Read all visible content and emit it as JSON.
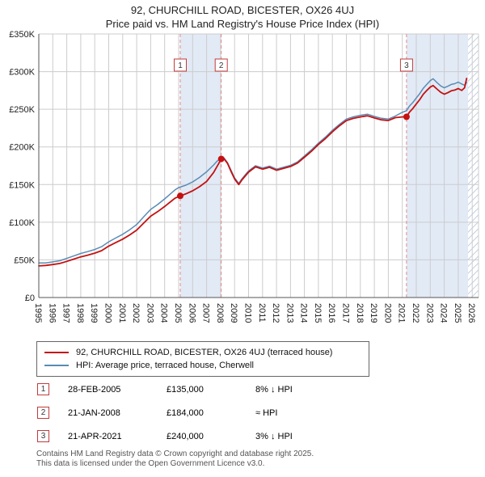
{
  "chart_data": {
    "type": "line",
    "title": "92, CHURCHILL ROAD, BICESTER, OX26 4UJ",
    "subtitle": "Price paid vs. HM Land Registry's House Price Index (HPI)",
    "xlim": [
      1995,
      2026.45
    ],
    "ylim": [
      0,
      350000
    ],
    "grid": true,
    "legend_position": "bottom",
    "x_ticks": [
      1995,
      1996,
      1997,
      1998,
      1999,
      2000,
      2001,
      2002,
      2003,
      2004,
      2005,
      2006,
      2007,
      2008,
      2009,
      2010,
      2011,
      2012,
      2013,
      2014,
      2015,
      2016,
      2017,
      2018,
      2019,
      2020,
      2021,
      2022,
      2023,
      2024,
      2025,
      2026
    ],
    "y_ticks": [
      {
        "value": 0,
        "label": "£0"
      },
      {
        "value": 50000,
        "label": "£50K"
      },
      {
        "value": 100000,
        "label": "£100K"
      },
      {
        "value": 150000,
        "label": "£150K"
      },
      {
        "value": 200000,
        "label": "£200K"
      },
      {
        "value": 250000,
        "label": "£250K"
      },
      {
        "value": 300000,
        "label": "£300K"
      },
      {
        "value": 350000,
        "label": "£350K"
      }
    ],
    "series": [
      {
        "name": "92, CHURCHILL ROAD, BICESTER, OX26 4UJ (terraced house)",
        "color": "#c41111",
        "points": [
          [
            1995,
            42000
          ],
          [
            1995.5,
            42600
          ],
          [
            1996,
            43800
          ],
          [
            1996.5,
            45200
          ],
          [
            1997,
            48000
          ],
          [
            1997.5,
            51000
          ],
          [
            1998,
            54000
          ],
          [
            1998.5,
            56300
          ],
          [
            1999,
            58900
          ],
          [
            1999.5,
            62300
          ],
          [
            2000,
            68300
          ],
          [
            2000.5,
            72900
          ],
          [
            2001,
            77500
          ],
          [
            2001.5,
            83100
          ],
          [
            2002,
            89500
          ],
          [
            2002.5,
            98800
          ],
          [
            2003,
            108000
          ],
          [
            2003.5,
            114000
          ],
          [
            2004,
            120900
          ],
          [
            2004.25,
            124600
          ],
          [
            2004.5,
            128300
          ],
          [
            2004.75,
            132000
          ],
          [
            2005.12,
            135000
          ],
          [
            2005.5,
            137500
          ],
          [
            2006,
            141700
          ],
          [
            2006.5,
            147200
          ],
          [
            2007,
            154200
          ],
          [
            2007.5,
            166000
          ],
          [
            2007.75,
            174000
          ],
          [
            2008.05,
            184000
          ],
          [
            2008.2,
            185500
          ],
          [
            2008.5,
            178000
          ],
          [
            2008.75,
            167500
          ],
          [
            2009,
            157500
          ],
          [
            2009.3,
            150000
          ],
          [
            2009.5,
            155500
          ],
          [
            2009.75,
            161000
          ],
          [
            2010,
            166500
          ],
          [
            2010.5,
            173500
          ],
          [
            2011,
            170500
          ],
          [
            2011.5,
            173000
          ],
          [
            2012,
            169000
          ],
          [
            2012.5,
            171500
          ],
          [
            2013,
            174000
          ],
          [
            2013.5,
            178500
          ],
          [
            2014,
            186300
          ],
          [
            2014.5,
            194200
          ],
          [
            2015,
            203200
          ],
          [
            2015.5,
            211100
          ],
          [
            2016,
            220000
          ],
          [
            2016.5,
            228000
          ],
          [
            2017,
            234900
          ],
          [
            2017.5,
            237900
          ],
          [
            2018,
            239900
          ],
          [
            2018.5,
            241400
          ],
          [
            2019,
            238400
          ],
          [
            2019.5,
            236000
          ],
          [
            2020,
            235000
          ],
          [
            2020.5,
            238900
          ],
          [
            2021,
            239800
          ],
          [
            2021.3,
            240000
          ],
          [
            2021.5,
            246000
          ],
          [
            2021.75,
            251000
          ],
          [
            2022,
            257000
          ],
          [
            2022.25,
            263000
          ],
          [
            2022.5,
            270000
          ],
          [
            2022.75,
            275000
          ],
          [
            2023,
            279500
          ],
          [
            2023.2,
            281500
          ],
          [
            2023.5,
            276500
          ],
          [
            2023.75,
            272500
          ],
          [
            2024,
            270000
          ],
          [
            2024.25,
            272000
          ],
          [
            2024.5,
            274500
          ],
          [
            2024.75,
            275500
          ],
          [
            2025,
            277500
          ],
          [
            2025.25,
            275000
          ],
          [
            2025.45,
            278500
          ],
          [
            2025.6,
            291000
          ]
        ]
      },
      {
        "name": "HPI: Average price, terraced house, Cherwell",
        "color": "#5a8bb5",
        "points": [
          [
            1995,
            46000
          ],
          [
            1995.5,
            45800
          ],
          [
            1996,
            47300
          ],
          [
            1996.5,
            48800
          ],
          [
            1997,
            52000
          ],
          [
            1997.5,
            55200
          ],
          [
            1998,
            58500
          ],
          [
            1998.5,
            61000
          ],
          [
            1999,
            63800
          ],
          [
            1999.5,
            67500
          ],
          [
            2000,
            74000
          ],
          [
            2000.5,
            79000
          ],
          [
            2001,
            84000
          ],
          [
            2001.5,
            90000
          ],
          [
            2002,
            97000
          ],
          [
            2002.5,
            107000
          ],
          [
            2003,
            117000
          ],
          [
            2003.5,
            123500
          ],
          [
            2004,
            131000
          ],
          [
            2004.25,
            135000
          ],
          [
            2004.5,
            139000
          ],
          [
            2004.75,
            143000
          ],
          [
            2005,
            146000
          ],
          [
            2005.5,
            149000
          ],
          [
            2006,
            153500
          ],
          [
            2006.5,
            159500
          ],
          [
            2007,
            167000
          ],
          [
            2007.5,
            176000
          ],
          [
            2007.75,
            181000
          ],
          [
            2008,
            185000
          ],
          [
            2008.2,
            186500
          ],
          [
            2008.5,
            179000
          ],
          [
            2008.75,
            169000
          ],
          [
            2009,
            159000
          ],
          [
            2009.3,
            151500
          ],
          [
            2009.5,
            157000
          ],
          [
            2009.75,
            162500
          ],
          [
            2010,
            168000
          ],
          [
            2010.5,
            175000
          ],
          [
            2011,
            172000
          ],
          [
            2011.5,
            174500
          ],
          [
            2012,
            170500
          ],
          [
            2012.5,
            173000
          ],
          [
            2013,
            175500
          ],
          [
            2013.5,
            180000
          ],
          [
            2014,
            188000
          ],
          [
            2014.5,
            196000
          ],
          [
            2015,
            205000
          ],
          [
            2015.5,
            213000
          ],
          [
            2016,
            222000
          ],
          [
            2016.5,
            230000
          ],
          [
            2017,
            237000
          ],
          [
            2017.5,
            240000
          ],
          [
            2018,
            242000
          ],
          [
            2018.5,
            243500
          ],
          [
            2019,
            240500
          ],
          [
            2019.5,
            238000
          ],
          [
            2020,
            237000
          ],
          [
            2020.5,
            241000
          ],
          [
            2021,
            246000
          ],
          [
            2021.3,
            248000
          ],
          [
            2021.5,
            254000
          ],
          [
            2021.75,
            259000
          ],
          [
            2022,
            265000
          ],
          [
            2022.25,
            271000
          ],
          [
            2022.5,
            278000
          ],
          [
            2022.75,
            283000
          ],
          [
            2023,
            288000
          ],
          [
            2023.2,
            290500
          ],
          [
            2023.5,
            285000
          ],
          [
            2023.75,
            281000
          ],
          [
            2024,
            278500
          ],
          [
            2024.25,
            280500
          ],
          [
            2024.5,
            283000
          ],
          [
            2024.75,
            284000
          ],
          [
            2025,
            286000
          ],
          [
            2025.25,
            283500
          ],
          [
            2025.45,
            282000
          ],
          [
            2025.6,
            285500
          ]
        ]
      }
    ],
    "sale_markers": [
      {
        "label": "1",
        "x": 2005.12,
        "y": 135000
      },
      {
        "label": "2",
        "x": 2008.05,
        "y": 184000
      },
      {
        "label": "3",
        "x": 2021.3,
        "y": 240000
      }
    ],
    "shaded_bands": [
      [
        2005.12,
        2008.05
      ],
      [
        2021.3,
        2025.7
      ]
    ],
    "hatched_band": [
      2025.7,
      2026.45
    ],
    "colors": {
      "band": "#e2eaf6",
      "grid": "#cccccc",
      "dashed": "#e08c8c",
      "axis": "#555555",
      "badge_border": "#c23b3b"
    }
  },
  "sales": [
    {
      "num": "1",
      "date": "28-FEB-2005",
      "price": "£135,000",
      "vs_hpi": "8% ↓ HPI"
    },
    {
      "num": "2",
      "date": "21-JAN-2008",
      "price": "£184,000",
      "vs_hpi": "≈ HPI"
    },
    {
      "num": "3",
      "date": "21-APR-2021",
      "price": "£240,000",
      "vs_hpi": "3% ↓ HPI"
    }
  ],
  "footer": {
    "line1": "Contains HM Land Registry data © Crown copyright and database right 2025.",
    "line2": "This data is licensed under the Open Government Licence v3.0."
  }
}
